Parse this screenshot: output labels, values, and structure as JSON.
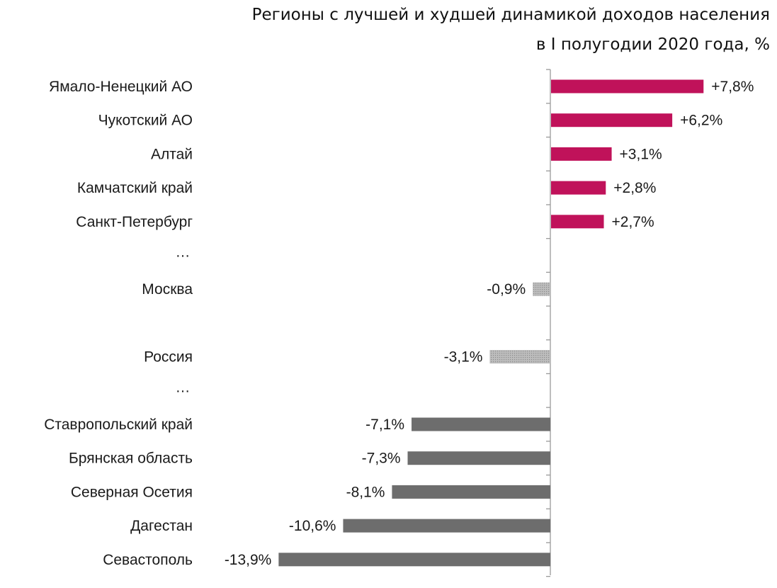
{
  "chart_data": {
    "type": "bar",
    "orientation": "horizontal",
    "title": "Регионы с лучшей и худшей динамикой доходов населения",
    "subtitle": "в I полугодии 2020 года, %",
    "xlabel": "",
    "ylabel": "",
    "grid": false,
    "legend": "none",
    "categories": [
      "Ямало-Ненецкий АО",
      "Чукотский АО",
      "Алтай",
      "Камчатский край",
      "Санкт-Петербург",
      "…",
      "Москва",
      "",
      "Россия",
      "…",
      "Ставропольский край",
      "Брянская область",
      "Северная Осетия",
      "Дагестан",
      "Севастополь"
    ],
    "values": [
      7.8,
      6.2,
      3.1,
      2.8,
      2.7,
      null,
      -0.9,
      null,
      -3.1,
      null,
      -7.1,
      -7.3,
      -8.1,
      -10.6,
      -13.9
    ],
    "data_labels": [
      "+7,8%",
      "+6,2%",
      "+3,1%",
      "+2,8%",
      "+2,7%",
      "",
      "-0,9%",
      "",
      "-3,1%",
      "",
      "-7,1%",
      "-7,3%",
      "-8,1%",
      "-10,6%",
      "-13,9%"
    ],
    "styles": [
      "best",
      "best",
      "best",
      "best",
      "best",
      "",
      "highlight",
      "",
      "highlight",
      "",
      "worst",
      "worst",
      "worst",
      "worst",
      "worst"
    ],
    "xlim": [
      -13.9,
      7.8
    ],
    "colors": {
      "best": "#c0125a",
      "worst": "#6d6d6d",
      "highlight": "#b9b9b9",
      "highlight_dots": "#8c8c8c",
      "axis": "#9a9a9a"
    }
  }
}
